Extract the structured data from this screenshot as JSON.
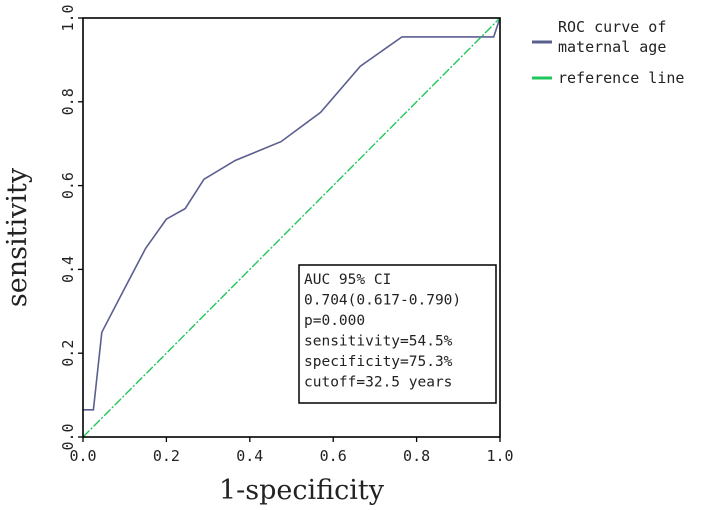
{
  "chart_data": {
    "type": "line",
    "title": "",
    "xlabel": "1-specificity",
    "ylabel": "sensitivity",
    "xlim": [
      0,
      1
    ],
    "ylim": [
      0,
      1
    ],
    "x_ticks": [
      "0.0",
      "0.2",
      "0.4",
      "0.6",
      "0.8",
      "1.0"
    ],
    "y_ticks": [
      "0.0",
      "0.2",
      "0.4",
      "0.6",
      "0.8",
      "1.0"
    ],
    "grid": false,
    "legend_position": "right-top",
    "series": [
      {
        "name": "ROC curve of maternal age",
        "name_lines": [
          "ROC curve of",
          "maternal age"
        ],
        "color": "#5b5f8f",
        "x": [
          0.0,
          0.025,
          0.045,
          0.1,
          0.15,
          0.2,
          0.245,
          0.29,
          0.365,
          0.475,
          0.57,
          0.665,
          0.765,
          0.965,
          0.985,
          1.0
        ],
        "y": [
          0.065,
          0.065,
          0.25,
          0.355,
          0.45,
          0.52,
          0.545,
          0.615,
          0.66,
          0.705,
          0.775,
          0.885,
          0.955,
          0.955,
          0.955,
          1.0
        ]
      },
      {
        "name": "reference line",
        "name_lines": [
          "reference line"
        ],
        "color": "#1fc75a",
        "x": [
          0,
          1
        ],
        "y": [
          0,
          1
        ]
      }
    ],
    "annotation": {
      "lines": [
        "AUC  95% CI",
        "0.704(0.617-0.790)",
        "p=0.000",
        "sensitivity=54.5%",
        "specificity=75.3%",
        "cutoff=32.5 years"
      ]
    }
  }
}
